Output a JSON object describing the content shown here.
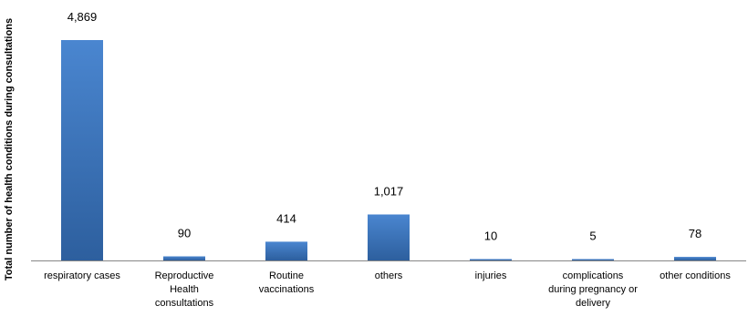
{
  "chart_data": {
    "type": "bar",
    "title": "",
    "xlabel": "",
    "ylabel": "Total number of health conditions during consultations",
    "categories": [
      [
        "respiratory cases"
      ],
      [
        "Reproductive",
        "Health",
        "consultations"
      ],
      [
        "Routine",
        "vaccinations"
      ],
      [
        "others"
      ],
      [
        "injuries"
      ],
      [
        "complications",
        "during pregnancy or",
        "delivery"
      ],
      [
        "other conditions"
      ]
    ],
    "values": [
      4869,
      90,
      414,
      1017,
      10,
      5,
      78
    ],
    "data_labels": [
      "4,869",
      "90",
      "414",
      "1,017",
      "10",
      "5",
      "78"
    ],
    "ylim": [
      0,
      4869
    ],
    "grid": false,
    "legend": "none",
    "colors": {
      "bar_top": "#4a86d0",
      "bar_bottom": "#2d5f9e",
      "axis": "#868686"
    }
  }
}
